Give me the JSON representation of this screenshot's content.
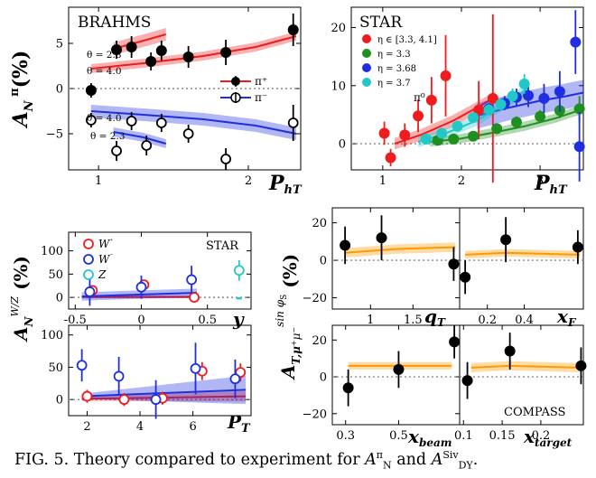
{
  "caption": {
    "prefix": "FIG. 5. Theory compared to experiment for ",
    "a_symbol": "A",
    "a_sup": "π",
    "a_sub": "N",
    "and": " and ",
    "b_symbol": "A",
    "b_sup": "Siv",
    "b_sub": "DY",
    "suffix": "."
  },
  "colors": {
    "red": "#ee1c1c",
    "blue": "#1f2fe0",
    "green": "#1f8f1f",
    "cyan": "#22c8c8",
    "orange": "#ff9900",
    "black": "#000000"
  },
  "chart_data": [
    {
      "type": "scatter",
      "panel": "brahms",
      "label": "BRAHMS",
      "ylabel": "A_N^π (%)",
      "xlabel": "P_hT",
      "xlim": [
        0.8,
        2.35
      ],
      "ylim": [
        -9,
        9
      ],
      "xticks": [
        1,
        2
      ],
      "yticks": [
        -5,
        0,
        5
      ],
      "annotations": [
        "θ = 2.3",
        "θ = 4.0",
        "θ = 4.0",
        "θ = 2.3"
      ],
      "legend": [
        "π⁺",
        "π⁻"
      ],
      "series": [
        {
          "name": "π⁺",
          "marker": "filled",
          "x": [
            0.95,
            1.12,
            1.22,
            1.35,
            1.42,
            1.6,
            1.85,
            2.3
          ],
          "y": [
            -0.2,
            4.3,
            4.6,
            3.0,
            4.2,
            3.5,
            4.0,
            6.5
          ],
          "err": [
            0.8,
            1.0,
            1.2,
            1.0,
            1.1,
            1.2,
            1.4,
            1.8
          ]
        },
        {
          "name": "π⁻",
          "marker": "open",
          "x": [
            0.95,
            1.12,
            1.22,
            1.32,
            1.42,
            1.6,
            1.85,
            2.3
          ],
          "y": [
            -3.5,
            -6.9,
            -3.6,
            -6.3,
            -3.8,
            -5.0,
            -7.8,
            -3.8
          ],
          "err": [
            0.8,
            1.1,
            1.0,
            1.1,
            1.0,
            1.0,
            1.2,
            2.0
          ]
        }
      ],
      "curves": [
        {
          "color": "red",
          "x": [
            1.1,
            1.3,
            1.45
          ],
          "y": [
            4.4,
            5.3,
            6.0
          ],
          "band": 0.7
        },
        {
          "color": "red",
          "x": [
            0.95,
            1.3,
            1.7,
            2.05,
            2.32
          ],
          "y": [
            2.2,
            2.8,
            3.6,
            4.6,
            5.8
          ],
          "band": 0.5
        },
        {
          "color": "blue",
          "x": [
            0.95,
            1.3,
            1.7,
            2.05,
            2.32
          ],
          "y": [
            -2.5,
            -2.9,
            -3.4,
            -4.1,
            -5.0
          ],
          "band": 0.7
        },
        {
          "color": "blue",
          "x": [
            1.1,
            1.3,
            1.45
          ],
          "y": [
            -4.8,
            -5.4,
            -6.1
          ],
          "band": 0.5
        }
      ]
    },
    {
      "type": "scatter",
      "panel": "star-top",
      "label": "STAR",
      "xlabel": "P_hT",
      "xlim": [
        0.6,
        3.55
      ],
      "ylim": [
        -4.5,
        23.5
      ],
      "xticks": [
        1,
        2,
        3
      ],
      "yticks": [
        0,
        10,
        20
      ],
      "annotations": [
        "π⁰"
      ],
      "series": [
        {
          "name": "η ∈ [3.3, 4.1]",
          "color": "red",
          "x": [
            1.02,
            1.1,
            1.28,
            1.45,
            1.62,
            1.8,
            2.22,
            2.4
          ],
          "y": [
            1.8,
            -2.4,
            1.5,
            4.8,
            7.5,
            11.7,
            5.8,
            7.8
          ],
          "err": [
            2.0,
            1.5,
            2.0,
            2.8,
            4.0,
            7.0,
            5.0,
            14.5
          ]
        },
        {
          "name": "η = 3.3",
          "color": "green",
          "x": [
            1.7,
            1.9,
            2.15,
            2.45,
            2.7,
            3.0,
            3.25,
            3.5
          ],
          "y": [
            0.6,
            0.8,
            1.3,
            2.6,
            3.7,
            4.7,
            5.7,
            6.0
          ],
          "err": [
            0.8,
            0.8,
            0.8,
            0.9,
            1.0,
            1.1,
            1.3,
            2.2
          ]
        },
        {
          "name": "η = 3.68",
          "color": "blue",
          "x": [
            2.35,
            2.55,
            2.7,
            2.85,
            3.05,
            3.25,
            3.45,
            3.5
          ],
          "y": [
            6.0,
            7.0,
            8.0,
            8.3,
            7.8,
            9.0,
            17.5,
            -0.5
          ],
          "err": [
            1.0,
            1.2,
            1.5,
            2.0,
            2.5,
            3.5,
            5.5,
            6.0
          ]
        },
        {
          "name": "η = 3.7",
          "color": "cyan",
          "x": [
            1.55,
            1.75,
            1.95,
            2.15,
            2.35,
            2.5,
            2.65,
            2.8
          ],
          "y": [
            0.8,
            1.8,
            3.0,
            4.5,
            5.8,
            6.8,
            8.2,
            10.3
          ],
          "err": [
            0.6,
            0.7,
            0.8,
            0.9,
            1.0,
            1.1,
            1.3,
            1.7
          ]
        }
      ],
      "curves": [
        {
          "color": "red",
          "x": [
            1.15,
            1.5,
            1.9,
            2.25,
            2.42
          ],
          "y": [
            0.0,
            1.6,
            4.0,
            6.6,
            8.0
          ],
          "band": 1.0
        },
        {
          "color": "green",
          "x": [
            1.6,
            2.0,
            2.4,
            2.8,
            3.2,
            3.55
          ],
          "y": [
            0.3,
            0.9,
            1.9,
            3.0,
            4.4,
            6.0
          ],
          "band": 0.8
        },
        {
          "color": "blue",
          "x": [
            2.2,
            2.6,
            3.0,
            3.3,
            3.55
          ],
          "y": [
            4.8,
            6.2,
            7.4,
            8.1,
            8.8
          ],
          "band": 2.2
        },
        {
          "color": "cyan",
          "x": [
            1.45,
            1.8,
            2.2,
            2.55,
            2.85
          ],
          "y": [
            0.3,
            1.8,
            4.0,
            6.8,
            9.6
          ],
          "band": 0.9
        }
      ]
    },
    {
      "type": "scatter",
      "panel": "wz-y",
      "label": "STAR",
      "ylabel": "A_N^{W/Z} (%)",
      "xlabel": "y",
      "xlim": [
        -0.55,
        0.83
      ],
      "ylim": [
        -25,
        140
      ],
      "xticks": [
        -0.5,
        0,
        0.5
      ],
      "yticks": [
        0,
        50,
        100
      ],
      "legend": [
        "W⁺",
        "W⁻",
        "Z"
      ],
      "series": [
        {
          "name": "W⁺",
          "color": "red",
          "x": [
            -0.37,
            0.02,
            0.4
          ],
          "y": [
            15,
            27,
            0
          ],
          "err": [
            10,
            10,
            8
          ]
        },
        {
          "name": "W⁻",
          "color": "blue",
          "x": [
            -0.39,
            0.0,
            0.38
          ],
          "y": [
            12,
            22,
            38
          ],
          "err": [
            30,
            25,
            30
          ]
        },
        {
          "name": "Z",
          "color": "cyan",
          "x": [
            0.74
          ],
          "y": [
            58
          ],
          "err": [
            22
          ]
        }
      ],
      "curves": [
        {
          "color": "red",
          "x": [
            -0.45,
            0.42
          ],
          "y": [
            1,
            1
          ],
          "band": 3
        },
        {
          "color": "blue",
          "x": [
            -0.45,
            0.42
          ],
          "y": [
            2,
            10
          ],
          "band": 9
        }
      ]
    },
    {
      "type": "scatter",
      "panel": "wz-pt",
      "xlabel": "P_T",
      "xlim": [
        1.3,
        8.2
      ],
      "ylim": [
        -25,
        115
      ],
      "xticks": [
        2,
        4,
        6
      ],
      "yticks": [
        0,
        50,
        100
      ],
      "series": [
        {
          "name": "W⁺",
          "color": "red",
          "x": [
            2.0,
            3.4,
            4.85,
            6.35,
            7.8
          ],
          "y": [
            5,
            0,
            2,
            44,
            42
          ],
          "err": [
            10,
            10,
            10,
            14,
            14
          ]
        },
        {
          "name": "W⁻",
          "color": "blue",
          "x": [
            1.8,
            3.2,
            4.6,
            6.1,
            7.6
          ],
          "y": [
            53,
            36,
            0,
            48,
            32
          ],
          "err": [
            25,
            30,
            30,
            40,
            30
          ]
        }
      ],
      "curves": [
        {
          "color": "red",
          "x": [
            1.8,
            8.0
          ],
          "y": [
            1,
            5
          ],
          "band": [
            3,
            8
          ]
        },
        {
          "color": "blue",
          "x": [
            1.8,
            8.0
          ],
          "y": [
            5,
            15
          ],
          "band": [
            4,
            22
          ]
        }
      ]
    },
    {
      "type": "scatter",
      "panel": "compass-qt",
      "ylabel": "A_{T,μ⁺μ⁻}^{sin φS} (%)",
      "xlabel": "q_T",
      "xlim": [
        0.55,
        2.05
      ],
      "ylim": [
        -26,
        28
      ],
      "xticks": [
        1,
        1.5
      ],
      "yticks": [
        -20,
        0,
        20
      ],
      "series": [
        {
          "name": "COMPASS",
          "x": [
            0.7,
            1.13,
            1.98
          ],
          "y": [
            8,
            12,
            -2
          ],
          "err": [
            10,
            12,
            9
          ]
        }
      ],
      "curves": [
        {
          "color": "orange",
          "x": [
            0.7,
            1.3,
            2.0
          ],
          "y": [
            4,
            6,
            7
          ],
          "band": 2.5
        }
      ]
    },
    {
      "type": "scatter",
      "panel": "compass-xf",
      "xlabel": "x_F",
      "xlim": [
        0.05,
        0.72
      ],
      "ylim": [
        -26,
        28
      ],
      "xticks": [
        0.2,
        0.4
      ],
      "yticks": [],
      "series": [
        {
          "name": "COMPASS",
          "x": [
            0.08,
            0.3,
            0.69
          ],
          "y": [
            -9,
            11,
            7
          ],
          "err": [
            9,
            12,
            9
          ]
        }
      ],
      "curves": [
        {
          "color": "orange",
          "x": [
            0.08,
            0.3,
            0.7
          ],
          "y": [
            3,
            4,
            3
          ],
          "band": 2
        }
      ]
    },
    {
      "type": "scatter",
      "panel": "compass-xbeam",
      "xlabel": "x_beam",
      "xlim": [
        0.25,
        0.73
      ],
      "ylim": [
        -26,
        28
      ],
      "xticks": [
        0.3,
        0.5
      ],
      "yticks": [
        -20,
        0,
        20
      ],
      "series": [
        {
          "name": "COMPASS",
          "x": [
            0.31,
            0.5,
            0.71
          ],
          "y": [
            -6,
            4,
            19
          ],
          "err": [
            10,
            10,
            9
          ]
        }
      ],
      "curves": [
        {
          "color": "orange",
          "x": [
            0.31,
            0.5,
            0.7
          ],
          "y": [
            6,
            6,
            6
          ],
          "band": 2
        }
      ]
    },
    {
      "type": "scatter",
      "panel": "compass-xtarget",
      "label": "COMPASS",
      "xlabel": "x_target",
      "xlim": [
        0.095,
        0.255
      ],
      "ylim": [
        -26,
        28
      ],
      "xticks": [
        0.1,
        0.15,
        0.2
      ],
      "yticks": [],
      "series": [
        {
          "name": "COMPASS",
          "x": [
            0.105,
            0.16,
            0.252
          ],
          "y": [
            -2,
            14,
            6
          ],
          "err": [
            10,
            10,
            10
          ]
        }
      ],
      "curves": [
        {
          "color": "orange",
          "x": [
            0.11,
            0.16,
            0.25
          ],
          "y": [
            5,
            6,
            5
          ],
          "band": 2.5
        }
      ]
    }
  ]
}
